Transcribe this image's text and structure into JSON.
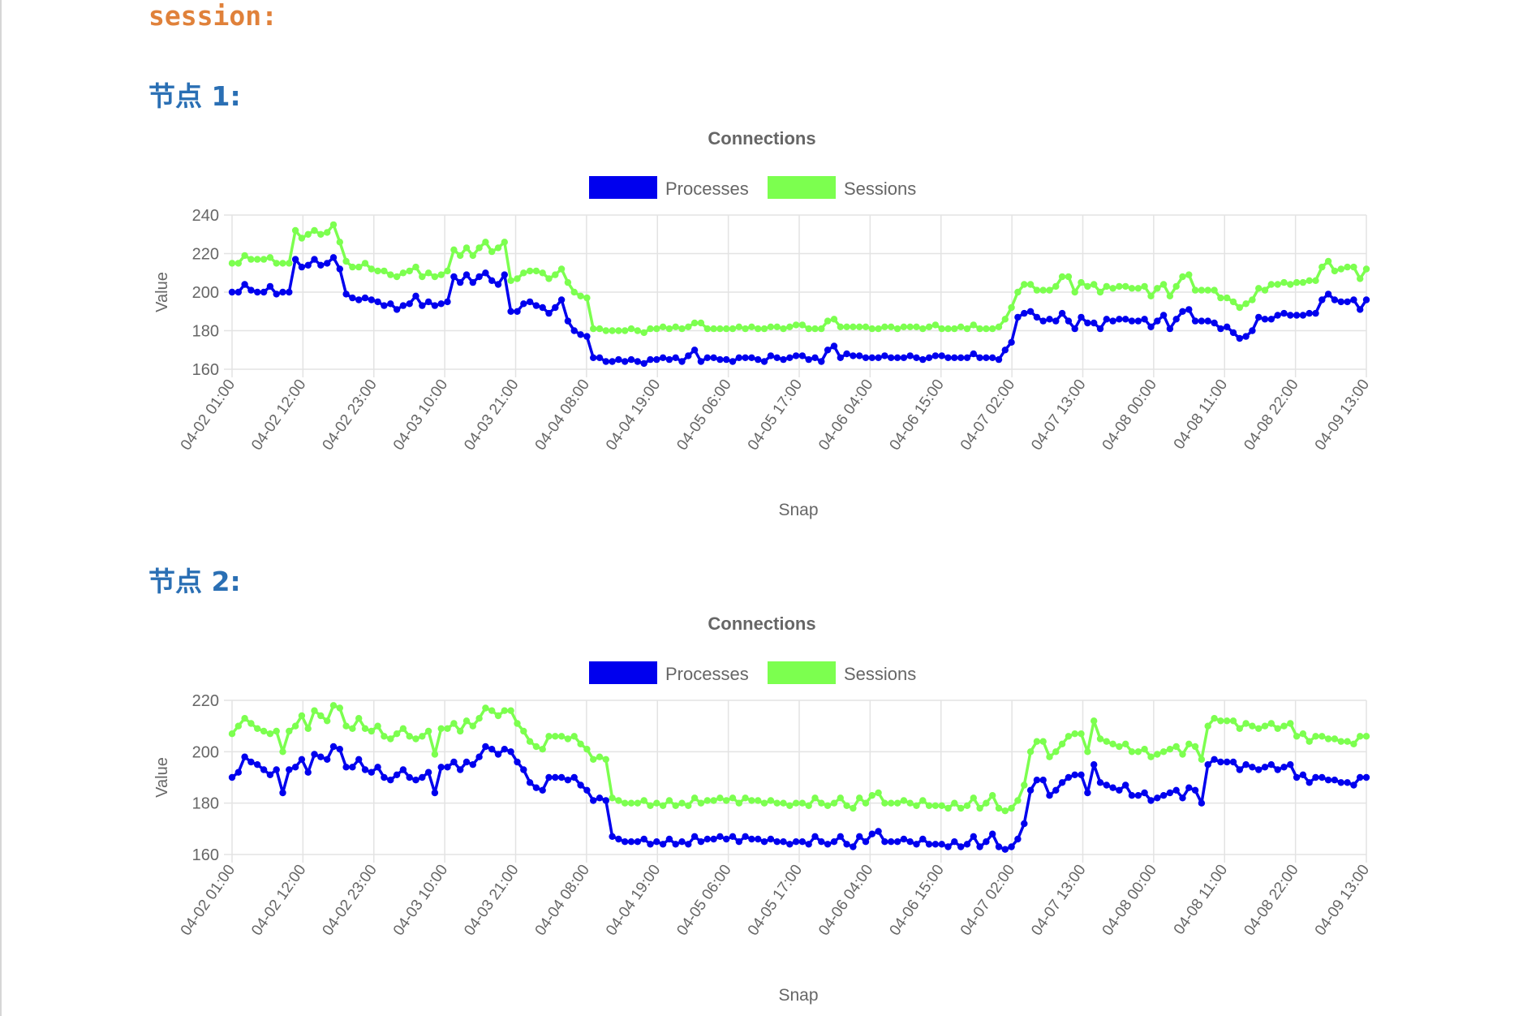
{
  "page": {
    "section_label": "session:",
    "node_headings": [
      "节点 1:",
      "节点 2:"
    ]
  },
  "colors": {
    "processes": "#0000ee",
    "sessions": "#7cff4f",
    "section": "#e0813a",
    "heading": "#2a6fb4"
  },
  "chart_data": [
    {
      "type": "line",
      "title": "Connections",
      "xlabel": "Snap",
      "ylabel": "Value",
      "ylim": [
        160,
        240
      ],
      "yticks": [
        160,
        180,
        200,
        220,
        240
      ],
      "grid": true,
      "legend": "top-center",
      "x_tick_labels": [
        "04-02 01:00",
        "04-02 12:00",
        "04-02 23:00",
        "04-03 10:00",
        "04-03 21:00",
        "04-04 08:00",
        "04-04 19:00",
        "04-05 06:00",
        "04-05 17:00",
        "04-06 04:00",
        "04-06 15:00",
        "04-07 02:00",
        "04-07 13:00",
        "04-08 00:00",
        "04-08 11:00",
        "04-08 22:00",
        "04-09 13:00"
      ],
      "series": [
        {
          "name": "Processes",
          "color": "#0000ee",
          "values": [
            200,
            200,
            204,
            201,
            200,
            200,
            203,
            199,
            200,
            200,
            217,
            213,
            214,
            217,
            214,
            215,
            218,
            212,
            199,
            197,
            196,
            197,
            196,
            195,
            193,
            194,
            191,
            193,
            194,
            198,
            193,
            195,
            193,
            194,
            195,
            208,
            205,
            209,
            205,
            208,
            210,
            206,
            204,
            209,
            190,
            190,
            194,
            195,
            193,
            192,
            189,
            192,
            196,
            185,
            180,
            178,
            177,
            166,
            166,
            164,
            164,
            165,
            164,
            165,
            164,
            163,
            165,
            165,
            166,
            165,
            166,
            164,
            167,
            170,
            164,
            166,
            166,
            165,
            165,
            164,
            166,
            166,
            166,
            165,
            164,
            167,
            166,
            165,
            166,
            167,
            167,
            165,
            166,
            164,
            170,
            172,
            166,
            168,
            167,
            167,
            166,
            166,
            166,
            167,
            166,
            166,
            166,
            167,
            166,
            165,
            166,
            167,
            167,
            166,
            166,
            166,
            166,
            168,
            166,
            166,
            166,
            165,
            170,
            174,
            187,
            189,
            190,
            187,
            185,
            186,
            185,
            189,
            185,
            181,
            187,
            184,
            184,
            181,
            186,
            185,
            186,
            186,
            185,
            185,
            186,
            182,
            185,
            188,
            181,
            186,
            190,
            191,
            185,
            185,
            185,
            184,
            181,
            182,
            179,
            176,
            177,
            180,
            187,
            186,
            186,
            188,
            189,
            188,
            188,
            188,
            189,
            189,
            196,
            199,
            196,
            195,
            195,
            196,
            191,
            196
          ]
        },
        {
          "name": "Sessions",
          "color": "#7cff4f",
          "values": [
            215,
            215,
            219,
            217,
            217,
            217,
            218,
            215,
            215,
            215,
            232,
            228,
            230,
            232,
            230,
            231,
            235,
            226,
            216,
            213,
            213,
            215,
            212,
            211,
            211,
            209,
            208,
            210,
            211,
            213,
            208,
            210,
            208,
            209,
            211,
            222,
            219,
            223,
            219,
            223,
            226,
            221,
            223,
            226,
            206,
            207,
            210,
            211,
            211,
            210,
            207,
            209,
            212,
            205,
            200,
            198,
            197,
            181,
            181,
            180,
            180,
            180,
            180,
            181,
            180,
            179,
            181,
            181,
            182,
            181,
            182,
            181,
            182,
            184,
            184,
            181,
            181,
            181,
            181,
            181,
            182,
            181,
            182,
            181,
            181,
            182,
            182,
            181,
            182,
            183,
            183,
            181,
            181,
            181,
            185,
            186,
            182,
            182,
            182,
            182,
            182,
            181,
            181,
            182,
            182,
            181,
            182,
            182,
            182,
            181,
            182,
            183,
            181,
            181,
            181,
            182,
            181,
            183,
            181,
            181,
            181,
            182,
            186,
            192,
            200,
            204,
            204,
            201,
            201,
            201,
            203,
            208,
            208,
            200,
            205,
            203,
            204,
            200,
            203,
            202,
            203,
            203,
            202,
            202,
            203,
            198,
            202,
            204,
            198,
            203,
            208,
            209,
            201,
            201,
            201,
            201,
            197,
            197,
            195,
            192,
            194,
            196,
            202,
            201,
            204,
            204,
            205,
            204,
            205,
            205,
            206,
            206,
            213,
            216,
            211,
            212,
            213,
            213,
            207,
            212
          ]
        }
      ]
    },
    {
      "type": "line",
      "title": "Connections",
      "xlabel": "Snap",
      "ylabel": "Value",
      "ylim": [
        160,
        220
      ],
      "yticks": [
        160,
        180,
        200,
        220
      ],
      "grid": true,
      "legend": "top-center",
      "x_tick_labels": [
        "04-02 01:00",
        "04-02 12:00",
        "04-02 23:00",
        "04-03 10:00",
        "04-03 21:00",
        "04-04 08:00",
        "04-04 19:00",
        "04-05 06:00",
        "04-05 17:00",
        "04-06 04:00",
        "04-06 15:00",
        "04-07 02:00",
        "04-07 13:00",
        "04-08 00:00",
        "04-08 11:00",
        "04-08 22:00",
        "04-09 13:00"
      ],
      "series": [
        {
          "name": "Processes",
          "color": "#0000ee",
          "values": [
            190,
            192,
            198,
            196,
            195,
            193,
            191,
            193,
            184,
            193,
            194,
            197,
            192,
            199,
            198,
            197,
            202,
            201,
            194,
            194,
            197,
            193,
            192,
            194,
            190,
            189,
            191,
            193,
            190,
            189,
            190,
            192,
            184,
            194,
            194,
            196,
            193,
            196,
            195,
            198,
            202,
            201,
            199,
            201,
            200,
            196,
            193,
            188,
            186,
            185,
            190,
            190,
            190,
            189,
            190,
            187,
            185,
            181,
            182,
            181,
            167,
            166,
            165,
            165,
            165,
            166,
            164,
            165,
            164,
            166,
            164,
            165,
            164,
            167,
            165,
            166,
            166,
            167,
            166,
            167,
            165,
            167,
            166,
            166,
            165,
            166,
            165,
            165,
            164,
            165,
            165,
            164,
            167,
            165,
            164,
            165,
            167,
            164,
            163,
            167,
            165,
            168,
            169,
            165,
            165,
            165,
            166,
            165,
            164,
            166,
            164,
            164,
            164,
            163,
            165,
            163,
            164,
            167,
            163,
            165,
            168,
            163,
            162,
            163,
            166,
            172,
            185,
            189,
            189,
            183,
            185,
            188,
            190,
            191,
            191,
            184,
            195,
            188,
            187,
            186,
            185,
            187,
            183,
            183,
            184,
            181,
            182,
            183,
            184,
            185,
            182,
            186,
            185,
            180,
            195,
            197,
            196,
            196,
            196,
            193,
            195,
            194,
            193,
            194,
            195,
            193,
            194,
            195,
            190,
            191,
            188,
            190,
            190,
            189,
            189,
            188,
            188,
            187,
            190,
            190
          ]
        },
        {
          "name": "Sessions",
          "color": "#7cff4f",
          "values": [
            207,
            210,
            213,
            211,
            209,
            208,
            207,
            208,
            200,
            208,
            210,
            214,
            209,
            216,
            214,
            212,
            218,
            217,
            210,
            209,
            213,
            209,
            208,
            210,
            206,
            205,
            207,
            209,
            206,
            205,
            206,
            208,
            199,
            209,
            209,
            211,
            208,
            212,
            210,
            213,
            217,
            216,
            214,
            216,
            216,
            211,
            208,
            204,
            202,
            201,
            206,
            206,
            206,
            205,
            206,
            203,
            201,
            197,
            198,
            197,
            182,
            181,
            180,
            180,
            180,
            181,
            179,
            180,
            179,
            181,
            179,
            180,
            179,
            182,
            180,
            181,
            181,
            182,
            181,
            182,
            180,
            182,
            181,
            181,
            180,
            181,
            180,
            180,
            179,
            180,
            180,
            179,
            182,
            180,
            179,
            180,
            182,
            179,
            178,
            182,
            180,
            183,
            184,
            180,
            180,
            180,
            181,
            180,
            179,
            181,
            179,
            179,
            179,
            178,
            180,
            178,
            179,
            182,
            178,
            180,
            183,
            178,
            177,
            178,
            181,
            187,
            200,
            204,
            204,
            198,
            200,
            203,
            206,
            207,
            207,
            200,
            212,
            205,
            204,
            203,
            202,
            203,
            200,
            200,
            201,
            198,
            199,
            200,
            201,
            202,
            199,
            203,
            202,
            197,
            210,
            213,
            212,
            212,
            212,
            209,
            211,
            210,
            209,
            210,
            211,
            209,
            210,
            211,
            206,
            207,
            204,
            206,
            206,
            205,
            205,
            204,
            204,
            203,
            206,
            206
          ]
        }
      ]
    }
  ]
}
